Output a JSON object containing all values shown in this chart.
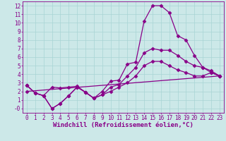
{
  "background_color": "#cce8e8",
  "line_color": "#880088",
  "marker": "D",
  "markersize": 2.5,
  "linewidth": 0.9,
  "xlabel": "Windchill (Refroidissement éolien,°C)",
  "xlabel_fontsize": 6.5,
  "tick_fontsize": 5.5,
  "xlim": [
    -0.5,
    23.5
  ],
  "ylim": [
    -0.5,
    12.5
  ],
  "xticks": [
    0,
    1,
    2,
    3,
    4,
    5,
    6,
    7,
    8,
    9,
    10,
    11,
    12,
    13,
    14,
    15,
    16,
    17,
    18,
    19,
    20,
    21,
    22,
    23
  ],
  "yticks": [
    0,
    1,
    2,
    3,
    4,
    5,
    6,
    7,
    8,
    9,
    10,
    11,
    12
  ],
  "ytick_labels": [
    "-0",
    "1",
    "2",
    "3",
    "4",
    "5",
    "6",
    "7",
    "8",
    "9",
    "10",
    "11",
    "12"
  ],
  "grid_color": "#a8d4d4",
  "series": [
    {
      "x": [
        0,
        1,
        2,
        3,
        4,
        5,
        6,
        7,
        8,
        9,
        10,
        11,
        12,
        13,
        14,
        15,
        16,
        17,
        18,
        19,
        20,
        21,
        22,
        23
      ],
      "y": [
        2.7,
        1.8,
        1.5,
        2.5,
        2.4,
        2.5,
        2.6,
        1.9,
        1.2,
        2.0,
        3.2,
        3.3,
        5.2,
        5.4,
        10.2,
        12.0,
        12.0,
        11.2,
        8.5,
        8.0,
        6.2,
        4.8,
        4.2,
        3.8
      ]
    },
    {
      "x": [
        0,
        1,
        2,
        3,
        4,
        5,
        6,
        7,
        8,
        9,
        10,
        11,
        12,
        13,
        14,
        15,
        16,
        17,
        18,
        19,
        20,
        21,
        22,
        23
      ],
      "y": [
        2.7,
        1.8,
        1.5,
        0.0,
        0.6,
        1.5,
        2.5,
        1.9,
        1.2,
        1.6,
        2.5,
        2.8,
        3.8,
        4.8,
        6.5,
        7.0,
        6.8,
        6.8,
        6.2,
        5.5,
        5.0,
        4.8,
        4.4,
        3.8
      ]
    },
    {
      "x": [
        0,
        1,
        2,
        3,
        4,
        5,
        6,
        7,
        8,
        9,
        10,
        11,
        12,
        13,
        14,
        15,
        16,
        17,
        18,
        19,
        20,
        21,
        22,
        23
      ],
      "y": [
        2.7,
        1.8,
        1.5,
        0.0,
        0.6,
        1.5,
        2.5,
        1.9,
        1.2,
        1.6,
        2.0,
        2.5,
        3.0,
        3.8,
        5.0,
        5.5,
        5.5,
        5.0,
        4.5,
        4.2,
        3.8,
        3.8,
        4.2,
        3.8
      ]
    },
    {
      "x": [
        0,
        23
      ],
      "y": [
        2.0,
        3.8
      ]
    }
  ]
}
